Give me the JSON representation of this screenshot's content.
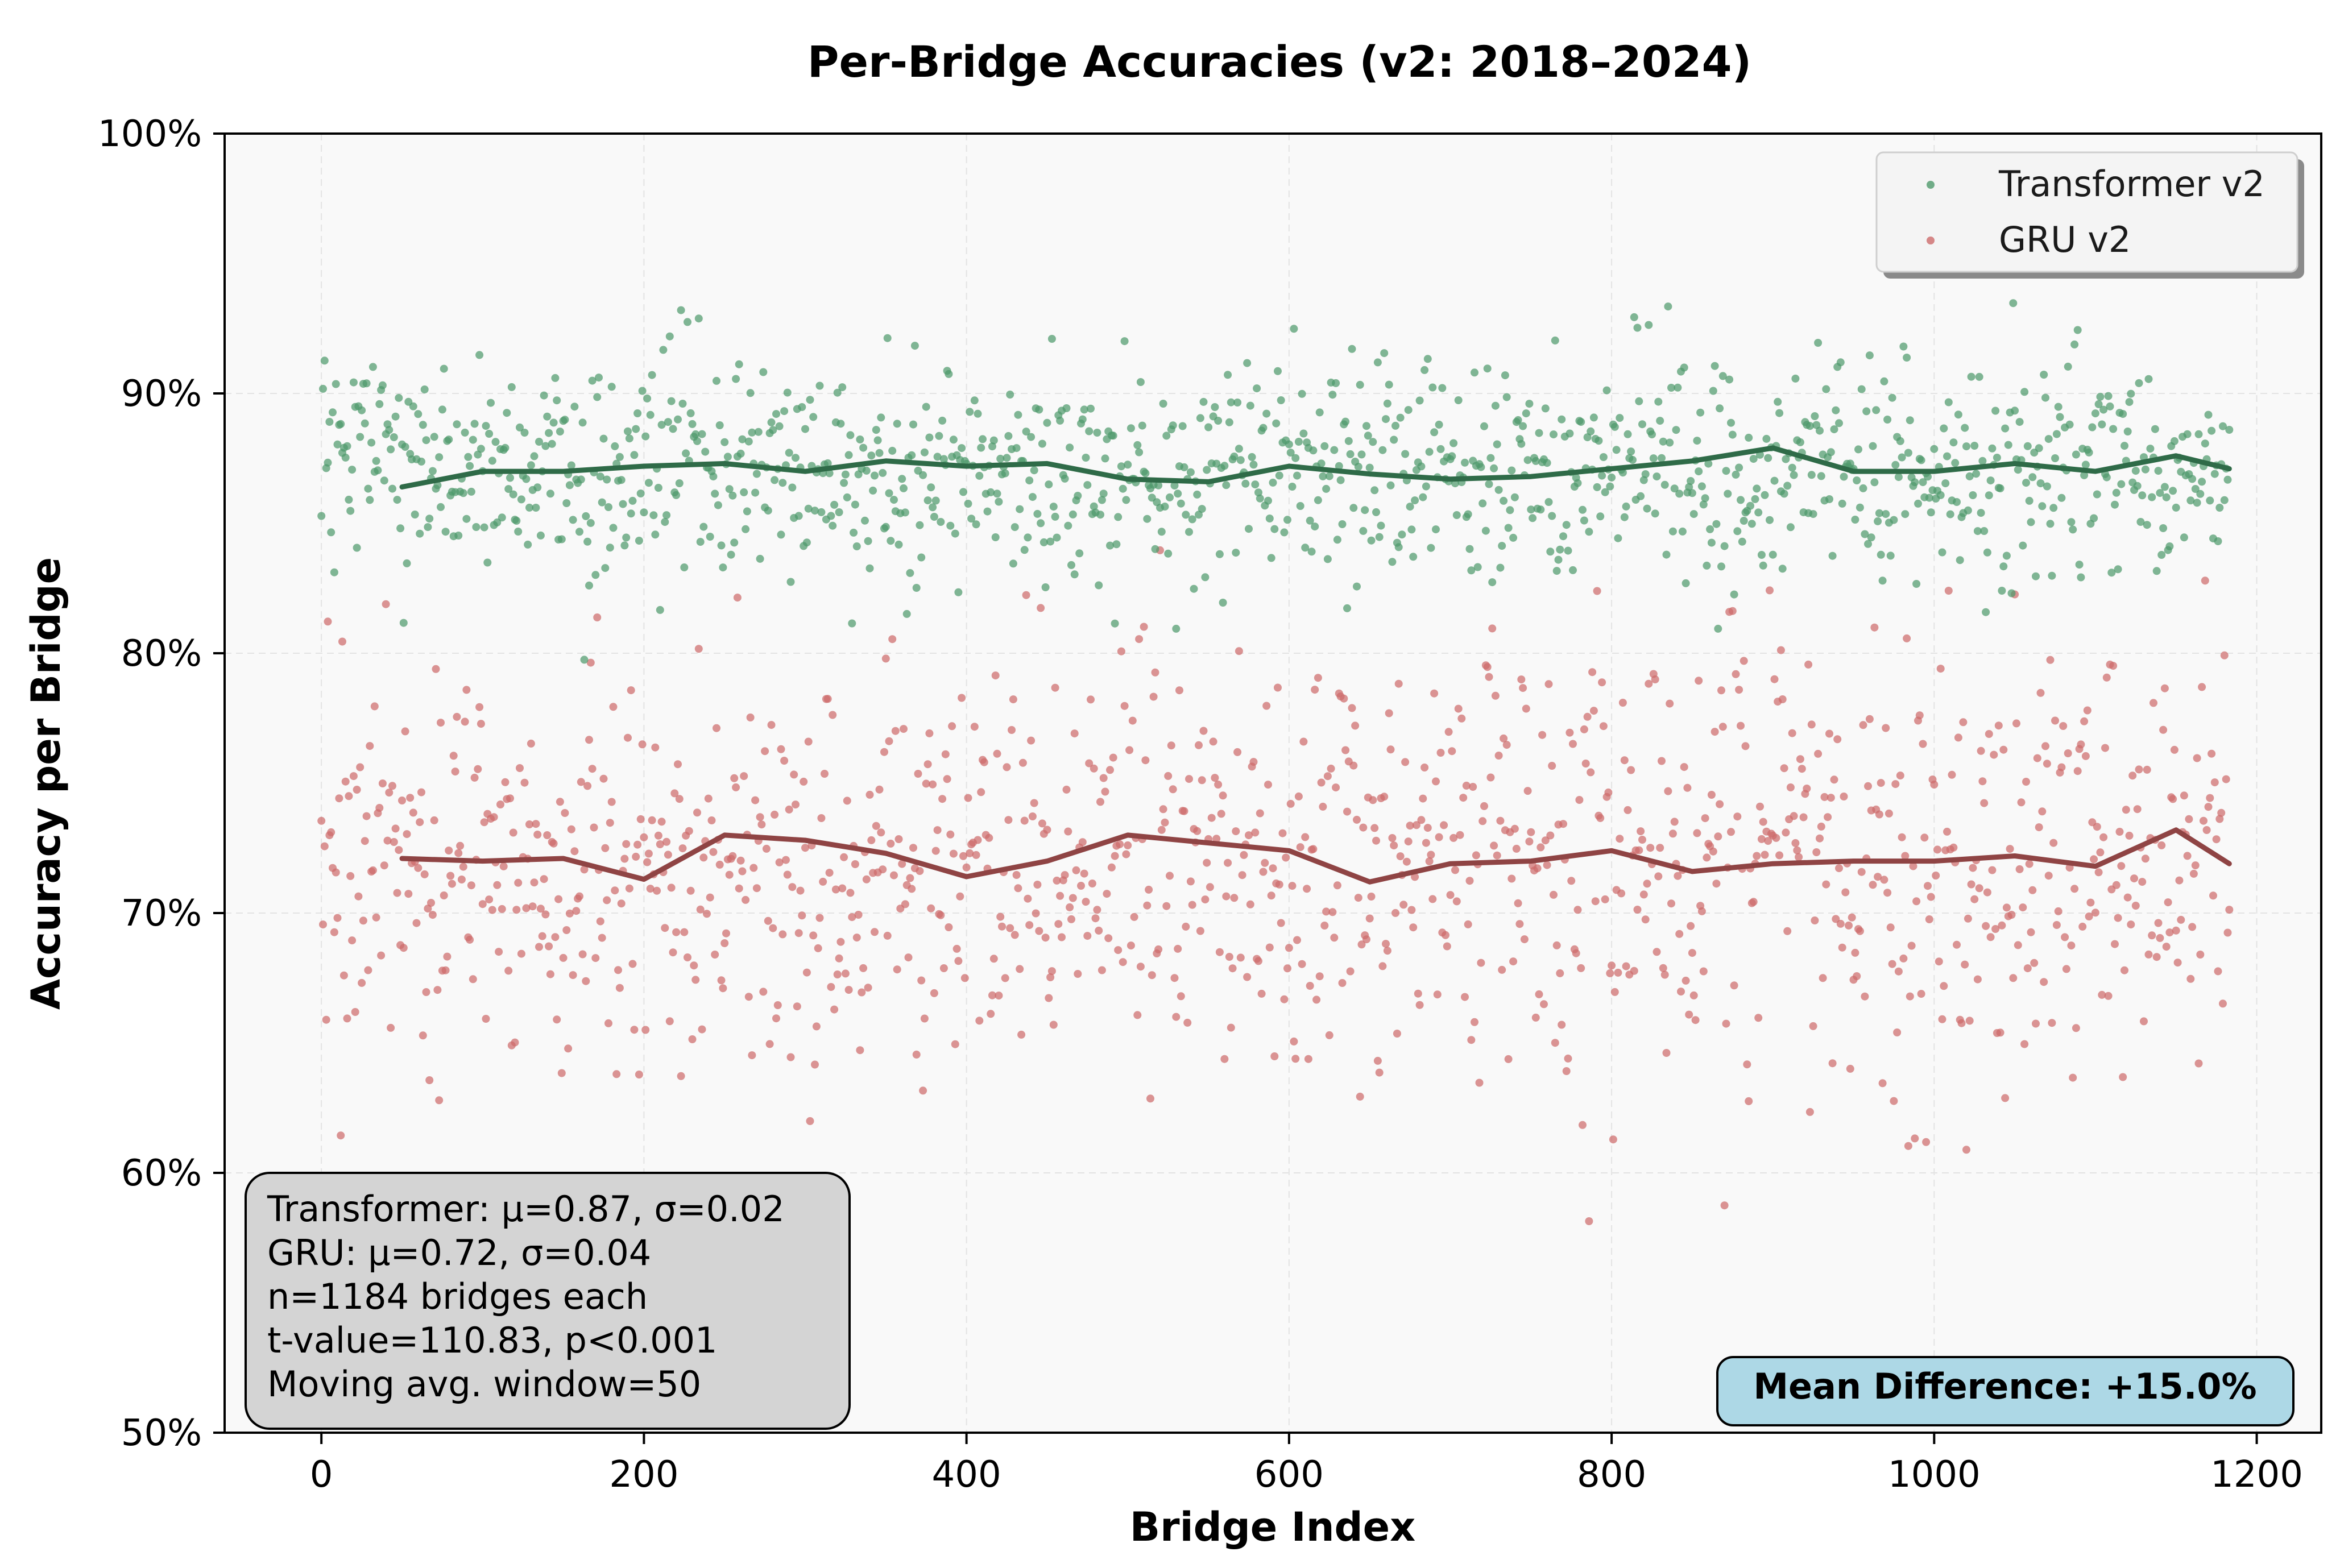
{
  "chart_data": {
    "type": "scatter",
    "title": "Per-Bridge Accuracies (v2: 2018–2024)",
    "xlabel": "Bridge Index",
    "ylabel": "Accuracy per Bridge",
    "xlim": [
      -60,
      1240
    ],
    "ylim": [
      0.5,
      1.0
    ],
    "x_ticks": [
      0,
      200,
      400,
      600,
      800,
      1000,
      1200
    ],
    "x_tick_labels": [
      "0",
      "200",
      "400",
      "600",
      "800",
      "1000",
      "1200"
    ],
    "y_ticks": [
      0.5,
      0.6,
      0.7,
      0.8,
      0.9,
      1.0
    ],
    "y_tick_labels": [
      "50%",
      "60%",
      "70%",
      "80%",
      "90%",
      "100%"
    ],
    "grid": true,
    "legend_position": "top-right",
    "n_points": 1184,
    "moving_avg_window": 50,
    "series": [
      {
        "name": "Transformer v2",
        "color": "#4f9a6c",
        "line_color": "#2f6b48",
        "mean": 0.87,
        "std": 0.02,
        "moving_avg": {
          "x": [
            50,
            100,
            150,
            200,
            250,
            300,
            350,
            400,
            450,
            500,
            550,
            600,
            650,
            700,
            750,
            800,
            850,
            900,
            950,
            1000,
            1050,
            1100,
            1150,
            1183
          ],
          "y": [
            0.864,
            0.87,
            0.87,
            0.872,
            0.873,
            0.87,
            0.874,
            0.872,
            0.873,
            0.867,
            0.866,
            0.872,
            0.869,
            0.867,
            0.868,
            0.871,
            0.874,
            0.879,
            0.87,
            0.87,
            0.873,
            0.87,
            0.876,
            0.871
          ]
        }
      },
      {
        "name": "GRU v2",
        "color": "#cd6b6b",
        "line_color": "#8f4444",
        "mean": 0.72,
        "std": 0.04,
        "moving_avg": {
          "x": [
            50,
            100,
            150,
            200,
            250,
            300,
            350,
            400,
            450,
            500,
            550,
            600,
            650,
            700,
            750,
            800,
            850,
            900,
            950,
            1000,
            1050,
            1100,
            1150,
            1183
          ],
          "y": [
            0.721,
            0.72,
            0.721,
            0.713,
            0.73,
            0.728,
            0.723,
            0.714,
            0.72,
            0.73,
            0.727,
            0.724,
            0.712,
            0.719,
            0.72,
            0.724,
            0.716,
            0.719,
            0.72,
            0.72,
            0.722,
            0.718,
            0.732,
            0.719
          ]
        }
      }
    ],
    "stats_box": [
      "Transformer: μ=0.87, σ=0.02",
      "GRU: μ=0.72, σ=0.04",
      "n=1184 bridges each",
      "t-value=110.83, p<0.001",
      "Moving avg. window=50"
    ],
    "mean_difference_label": "Mean Difference: +15.0%"
  }
}
